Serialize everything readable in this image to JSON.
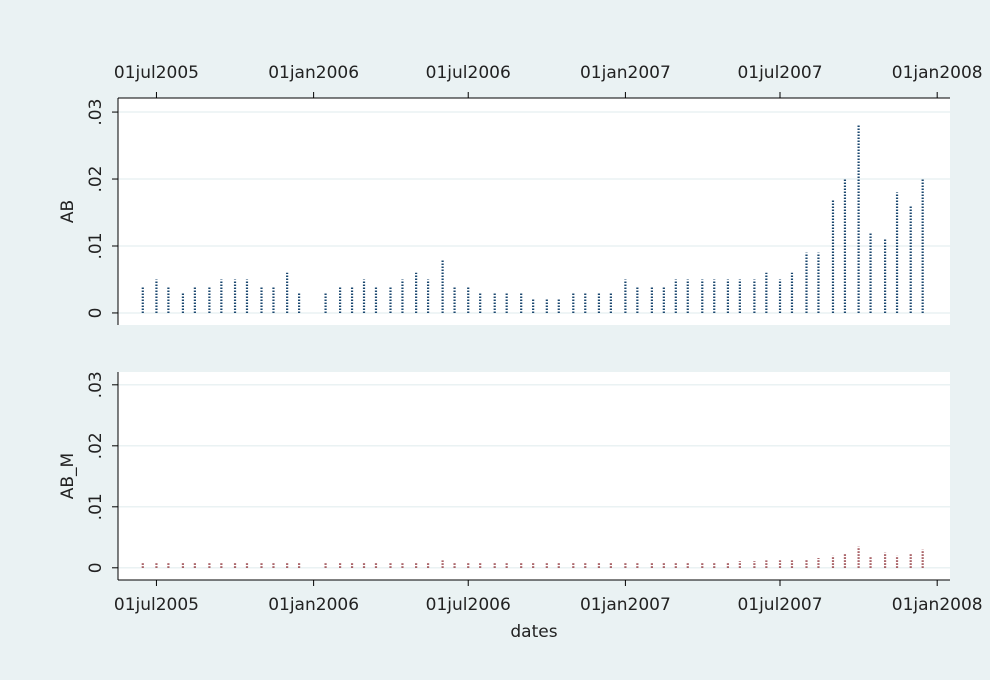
{
  "chart_data": [
    {
      "type": "spike",
      "ylabel": "AB",
      "color": "#1a476f",
      "xaxis_position": "top",
      "grid": true,
      "x": [
        "2005-06-15",
        "2005-07-01",
        "2005-07-15",
        "2005-08-01",
        "2005-08-15",
        "2005-09-01",
        "2005-09-15",
        "2005-10-01",
        "2005-10-15",
        "2005-11-01",
        "2005-11-15",
        "2005-12-01",
        "2005-12-15",
        "2006-01-15",
        "2006-02-01",
        "2006-02-15",
        "2006-03-01",
        "2006-03-15",
        "2006-04-01",
        "2006-04-15",
        "2006-05-01",
        "2006-05-15",
        "2006-06-01",
        "2006-06-15",
        "2006-07-01",
        "2006-07-15",
        "2006-08-01",
        "2006-08-15",
        "2006-09-01",
        "2006-09-15",
        "2006-10-01",
        "2006-10-15",
        "2006-11-01",
        "2006-11-15",
        "2006-12-01",
        "2006-12-15",
        "2007-01-01",
        "2007-01-15",
        "2007-02-01",
        "2007-02-15",
        "2007-03-01",
        "2007-03-15",
        "2007-04-01",
        "2007-04-15",
        "2007-05-01",
        "2007-05-15",
        "2007-06-01",
        "2007-06-15",
        "2007-07-01",
        "2007-07-15",
        "2007-08-01",
        "2007-08-15",
        "2007-09-01",
        "2007-09-15",
        "2007-10-01",
        "2007-10-15",
        "2007-11-01",
        "2007-11-15",
        "2007-12-01",
        "2007-12-15"
      ],
      "values": [
        0.004,
        0.005,
        0.004,
        0.003,
        0.004,
        0.004,
        0.005,
        0.005,
        0.005,
        0.004,
        0.004,
        0.006,
        0.003,
        0.003,
        0.004,
        0.004,
        0.005,
        0.004,
        0.004,
        0.005,
        0.006,
        0.005,
        0.008,
        0.004,
        0.004,
        0.003,
        0.003,
        0.003,
        0.003,
        0.002,
        0.002,
        0.002,
        0.003,
        0.003,
        0.003,
        0.003,
        0.005,
        0.004,
        0.004,
        0.004,
        0.005,
        0.005,
        0.005,
        0.005,
        0.005,
        0.005,
        0.005,
        0.006,
        0.005,
        0.006,
        0.009,
        0.009,
        0.017,
        0.02,
        0.028,
        0.012,
        0.011,
        0.018,
        0.016,
        0.02
      ],
      "xlim": [
        "2005-05-17",
        "2008-01-16"
      ],
      "xticks": [
        {
          "value": "2005-07-01",
          "label": "01jul2005"
        },
        {
          "value": "2006-01-01",
          "label": "01jan2006"
        },
        {
          "value": "2006-07-01",
          "label": "01jul2006"
        },
        {
          "value": "2007-01-01",
          "label": "01jan2007"
        },
        {
          "value": "2007-07-01",
          "label": "01jul2007"
        },
        {
          "value": "2008-01-01",
          "label": "01jan2008"
        }
      ],
      "ylim": [
        -0.0018,
        0.0321
      ],
      "yticks": [
        0,
        {
          "value": 0.01,
          "label": ".01"
        },
        {
          "value": 0.02,
          "label": ".02"
        },
        {
          "value": 0.03,
          "label": ".03"
        }
      ]
    },
    {
      "type": "spike",
      "ylabel": "AB_M",
      "xlabel": "dates",
      "color": "#90353b",
      "xaxis_position": "bottom",
      "grid": true,
      "x": [
        "2005-06-15",
        "2005-07-01",
        "2005-07-15",
        "2005-08-01",
        "2005-08-15",
        "2005-09-01",
        "2005-09-15",
        "2005-10-01",
        "2005-10-15",
        "2005-11-01",
        "2005-11-15",
        "2005-12-01",
        "2005-12-15",
        "2006-01-15",
        "2006-02-01",
        "2006-02-15",
        "2006-03-01",
        "2006-03-15",
        "2006-04-01",
        "2006-04-15",
        "2006-05-01",
        "2006-05-15",
        "2006-06-01",
        "2006-06-15",
        "2006-07-01",
        "2006-07-15",
        "2006-08-01",
        "2006-08-15",
        "2006-09-01",
        "2006-09-15",
        "2006-10-01",
        "2006-10-15",
        "2006-11-01",
        "2006-11-15",
        "2006-12-01",
        "2006-12-15",
        "2007-01-01",
        "2007-01-15",
        "2007-02-01",
        "2007-02-15",
        "2007-03-01",
        "2007-03-15",
        "2007-04-01",
        "2007-04-15",
        "2007-05-01",
        "2007-05-15",
        "2007-06-01",
        "2007-06-15",
        "2007-07-01",
        "2007-07-15",
        "2007-08-01",
        "2007-08-15",
        "2007-09-01",
        "2007-09-15",
        "2007-10-01",
        "2007-10-15",
        "2007-11-01",
        "2007-11-15",
        "2007-12-01",
        "2007-12-15"
      ],
      "values": [
        0.0008,
        0.0008,
        0.0009,
        0.0008,
        0.0008,
        0.0009,
        0.0009,
        0.0008,
        0.0008,
        0.0009,
        0.0009,
        0.001,
        0.0008,
        0.0009,
        0.0009,
        0.0009,
        0.001,
        0.0009,
        0.0009,
        0.0009,
        0.001,
        0.001,
        0.0012,
        0.0009,
        0.0009,
        0.0009,
        0.0009,
        0.0008,
        0.0009,
        0.0008,
        0.0008,
        0.0008,
        0.0008,
        0.0009,
        0.0009,
        0.0008,
        0.0009,
        0.0009,
        0.0009,
        0.0009,
        0.001,
        0.001,
        0.001,
        0.001,
        0.001,
        0.0011,
        0.0011,
        0.0012,
        0.0012,
        0.0012,
        0.0014,
        0.0016,
        0.002,
        0.0022,
        0.0035,
        0.0018,
        0.0025,
        0.002,
        0.0022,
        0.003
      ],
      "xlim": [
        "2005-05-17",
        "2008-01-16"
      ],
      "xticks": [
        {
          "value": "2005-07-01",
          "label": "01jul2005"
        },
        {
          "value": "2006-01-01",
          "label": "01jan2006"
        },
        {
          "value": "2006-07-01",
          "label": "01jul2006"
        },
        {
          "value": "2007-01-01",
          "label": "01jan2007"
        },
        {
          "value": "2007-07-01",
          "label": "01jul2007"
        },
        {
          "value": "2008-01-01",
          "label": "01jan2008"
        }
      ],
      "ylim": [
        -0.002,
        0.0321
      ],
      "yticks": [
        0,
        {
          "value": 0.01,
          "label": ".01"
        },
        {
          "value": 0.02,
          "label": ".02"
        },
        {
          "value": 0.03,
          "label": ".03"
        }
      ]
    }
  ]
}
